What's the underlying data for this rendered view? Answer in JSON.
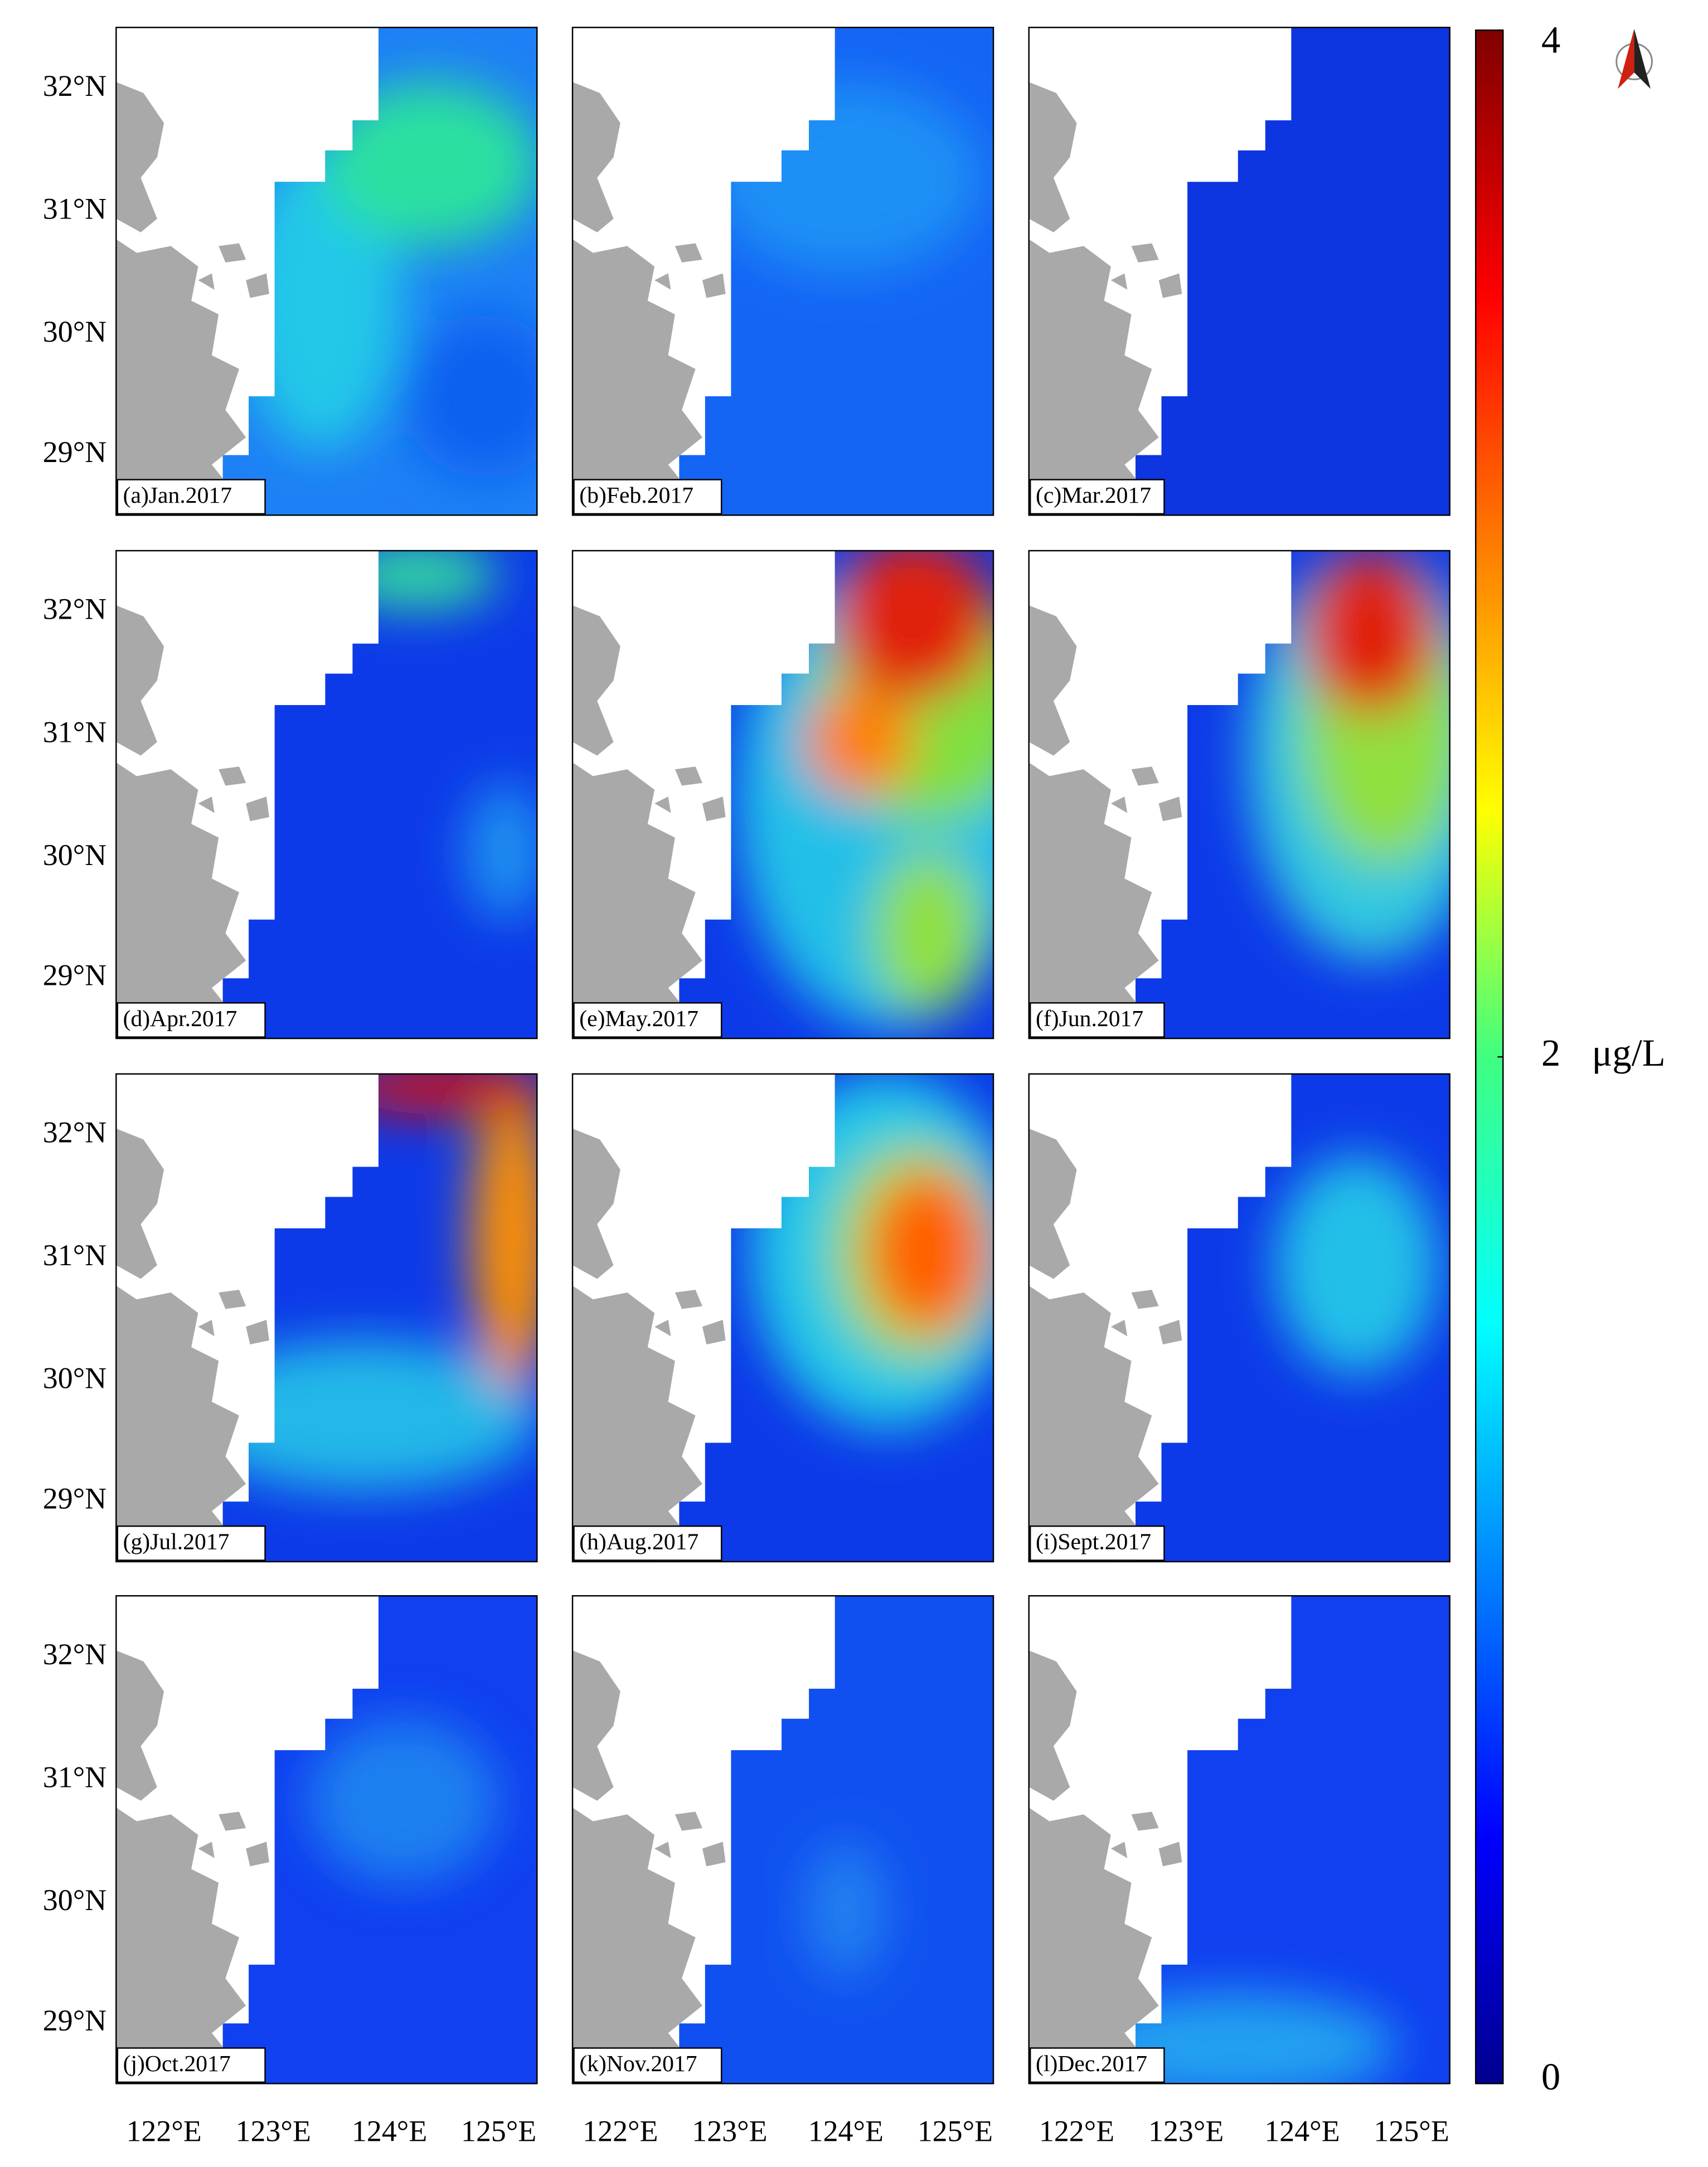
{
  "panels": [
    {
      "label": "(a)Jan.2017"
    },
    {
      "label": "(b)Feb.2017"
    },
    {
      "label": "(c)Mar.2017"
    },
    {
      "label": "(d)Apr.2017"
    },
    {
      "label": "(e)May.2017"
    },
    {
      "label": "(f)Jun.2017"
    },
    {
      "label": "(g)Jul.2017"
    },
    {
      "label": "(h)Aug.2017"
    },
    {
      "label": "(i)Sept.2017"
    },
    {
      "label": "(j)Oct.2017"
    },
    {
      "label": "(k)Nov.2017"
    },
    {
      "label": "(l)Dec.2017"
    }
  ],
  "lat_ticks": [
    "32°N",
    "31°N",
    "30°N",
    "29°N"
  ],
  "lon_ticks": [
    "122°E",
    "123°E",
    "124°E",
    "125°E"
  ],
  "colorbar": {
    "range": [
      0,
      4
    ],
    "ticks": [
      0,
      2,
      4
    ],
    "unit": "μg/L"
  }
}
